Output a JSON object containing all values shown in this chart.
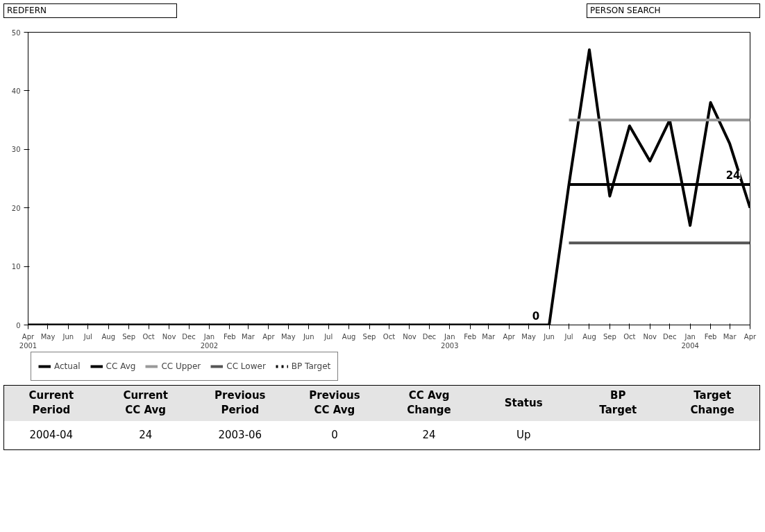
{
  "chart_data": {
    "type": "line",
    "x": [
      "2001-04",
      "2001-05",
      "2001-06",
      "2001-07",
      "2001-08",
      "2001-09",
      "2001-10",
      "2001-11",
      "2001-12",
      "2002-01",
      "2002-02",
      "2002-03",
      "2002-04",
      "2002-05",
      "2002-06",
      "2002-07",
      "2002-08",
      "2002-09",
      "2002-10",
      "2002-11",
      "2002-12",
      "2003-01",
      "2003-02",
      "2003-03",
      "2003-04",
      "2003-05",
      "2003-06",
      "2003-07",
      "2003-08",
      "2003-09",
      "2003-10",
      "2003-11",
      "2003-12",
      "2004-01",
      "2004-02",
      "2004-03",
      "2004-04"
    ],
    "series": [
      {
        "name": "Actual",
        "color": "#000000",
        "values": [
          0,
          0,
          0,
          0,
          0,
          0,
          0,
          0,
          0,
          0,
          0,
          0,
          0,
          0,
          0,
          0,
          0,
          0,
          0,
          0,
          0,
          0,
          0,
          0,
          0,
          0,
          0,
          24,
          47,
          22,
          34,
          28,
          35,
          17,
          38,
          31,
          20
        ],
        "value_labels": [
          null,
          null,
          null,
          null,
          null,
          null,
          null,
          null,
          null,
          null,
          null,
          null,
          null,
          null,
          null,
          null,
          null,
          null,
          null,
          null,
          null,
          null,
          null,
          null,
          null,
          null,
          "0",
          null,
          null,
          null,
          null,
          null,
          null,
          null,
          null,
          null,
          null
        ]
      },
      {
        "name": "CC Avg",
        "color": "#000000",
        "x": [
          "2003-07",
          "2004-04"
        ],
        "values": [
          24,
          24
        ],
        "value_labels": [
          null,
          "24"
        ]
      },
      {
        "name": "CC Upper",
        "color": "#999999",
        "x": [
          "2003-07",
          "2004-04"
        ],
        "values": [
          35,
          35
        ]
      },
      {
        "name": "CC Lower",
        "color": "#555555",
        "x": [
          "2003-07",
          "2004-04"
        ],
        "values": [
          14,
          14
        ]
      },
      {
        "name": "BP Target",
        "color": "#000000",
        "values": [
          null,
          null,
          null,
          null,
          null,
          null,
          null,
          null,
          null,
          null,
          null,
          null,
          null,
          null,
          null,
          null,
          null,
          null,
          null,
          null,
          null,
          null,
          null,
          null,
          null,
          null,
          null,
          null,
          null,
          null,
          null,
          null,
          null,
          null,
          null,
          null,
          null
        ],
        "line_style": "dotted"
      }
    ],
    "xlim": [
      "2001-04",
      "2004-04"
    ],
    "xticks": [
      {
        "value": "2001-04",
        "label": "Apr\n2001"
      },
      {
        "value": "2001-05",
        "label": "May"
      },
      {
        "value": "2001-06",
        "label": "Jun"
      },
      {
        "value": "2001-07",
        "label": "Jul"
      },
      {
        "value": "2001-08",
        "label": "Aug"
      },
      {
        "value": "2001-09",
        "label": "Sep"
      },
      {
        "value": "2001-10",
        "label": "Oct"
      },
      {
        "value": "2001-11",
        "label": "Nov"
      },
      {
        "value": "2001-12",
        "label": "Dec"
      },
      {
        "value": "2002-01",
        "label": "Jan\n2002"
      },
      {
        "value": "2002-02",
        "label": "Feb"
      },
      {
        "value": "2002-03",
        "label": "Mar"
      },
      {
        "value": "2002-04",
        "label": "Apr"
      },
      {
        "value": "2002-05",
        "label": "May"
      },
      {
        "value": "2002-06",
        "label": "Jun"
      },
      {
        "value": "2002-07",
        "label": "Jul"
      },
      {
        "value": "2002-08",
        "label": "Aug"
      },
      {
        "value": "2002-09",
        "label": "Sep"
      },
      {
        "value": "2002-10",
        "label": "Oct"
      },
      {
        "value": "2002-11",
        "label": "Nov"
      },
      {
        "value": "2002-12",
        "label": "Dec"
      },
      {
        "value": "2003-01",
        "label": "Jan\n2003"
      },
      {
        "value": "2003-02",
        "label": "Feb"
      },
      {
        "value": "2003-03",
        "label": "Mar"
      },
      {
        "value": "2003-04",
        "label": "Apr"
      },
      {
        "value": "2003-05",
        "label": "May"
      },
      {
        "value": "2003-06",
        "label": "Jun"
      },
      {
        "value": "2003-07",
        "label": "Jul"
      },
      {
        "value": "2003-08",
        "label": "Aug"
      },
      {
        "value": "2003-09",
        "label": "Sep"
      },
      {
        "value": "2003-10",
        "label": "Oct"
      },
      {
        "value": "2003-11",
        "label": "Nov"
      },
      {
        "value": "2003-12",
        "label": "Dec"
      },
      {
        "value": "2004-01",
        "label": "Jan\n2004"
      },
      {
        "value": "2004-02",
        "label": "Feb"
      },
      {
        "value": "2004-03",
        "label": "Mar"
      },
      {
        "value": "2004-04",
        "label": "Apr"
      }
    ],
    "ylim": [
      0,
      50
    ],
    "yticks": [
      0,
      10,
      20,
      30,
      40,
      50
    ],
    "grid": false,
    "legend": "bottom",
    "marker": "none",
    "line_style": "solid",
    "annotations": [
      "REDFERN",
      "PERSON SEARCH",
      "Current Period",
      "Current CC Avg",
      "Previous Period",
      "Previous CC Avg",
      "CC Avg Change",
      "Status",
      "BP Target",
      "Target Change",
      "2004-04",
      "24",
      "2003-06",
      "0",
      "24",
      "Up"
    ]
  }
}
